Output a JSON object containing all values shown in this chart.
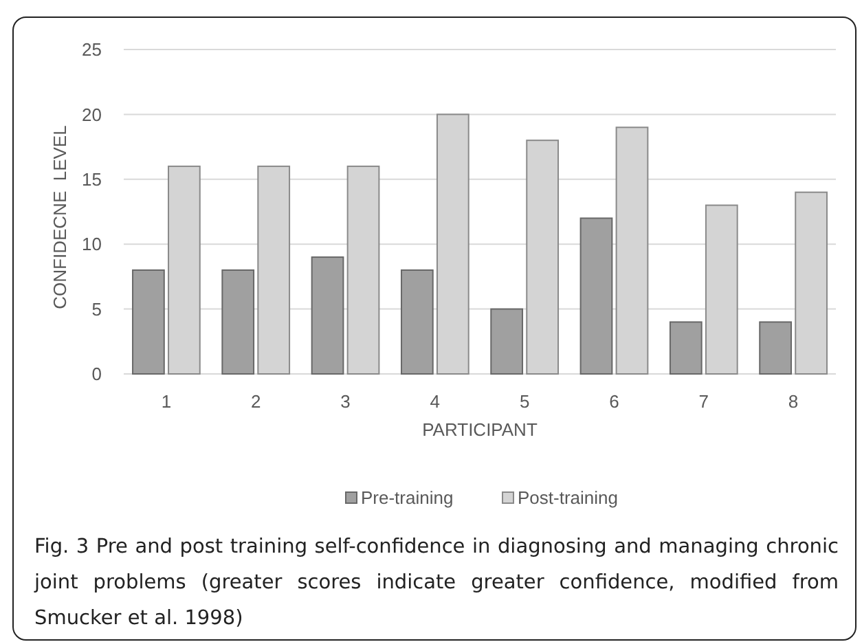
{
  "chart_data": {
    "type": "bar",
    "categories": [
      "1",
      "2",
      "3",
      "4",
      "5",
      "6",
      "7",
      "8"
    ],
    "series": [
      {
        "name": "Pre-training",
        "color": "#a0a0a0",
        "values": [
          8,
          8,
          9,
          8,
          5,
          12,
          4,
          4
        ]
      },
      {
        "name": "Post-training",
        "color": "#d4d4d4",
        "values": [
          16,
          16,
          16,
          20,
          18,
          19,
          13,
          14
        ]
      }
    ],
    "xlabel": "PARTICIPANT",
    "ylabel": "CONFIDECNE  LEVEL",
    "ylim": [
      0,
      25
    ],
    "yticks": [
      0,
      5,
      10,
      15,
      20,
      25
    ],
    "grid": "y",
    "legend": "bottom",
    "annotations": [
      "Fig. 3 Pre and post training self-confidence in diagnosing and managing chronic joint problems (greater scores indicate greater confidence, modified from Smucker et al. 1998)"
    ]
  }
}
